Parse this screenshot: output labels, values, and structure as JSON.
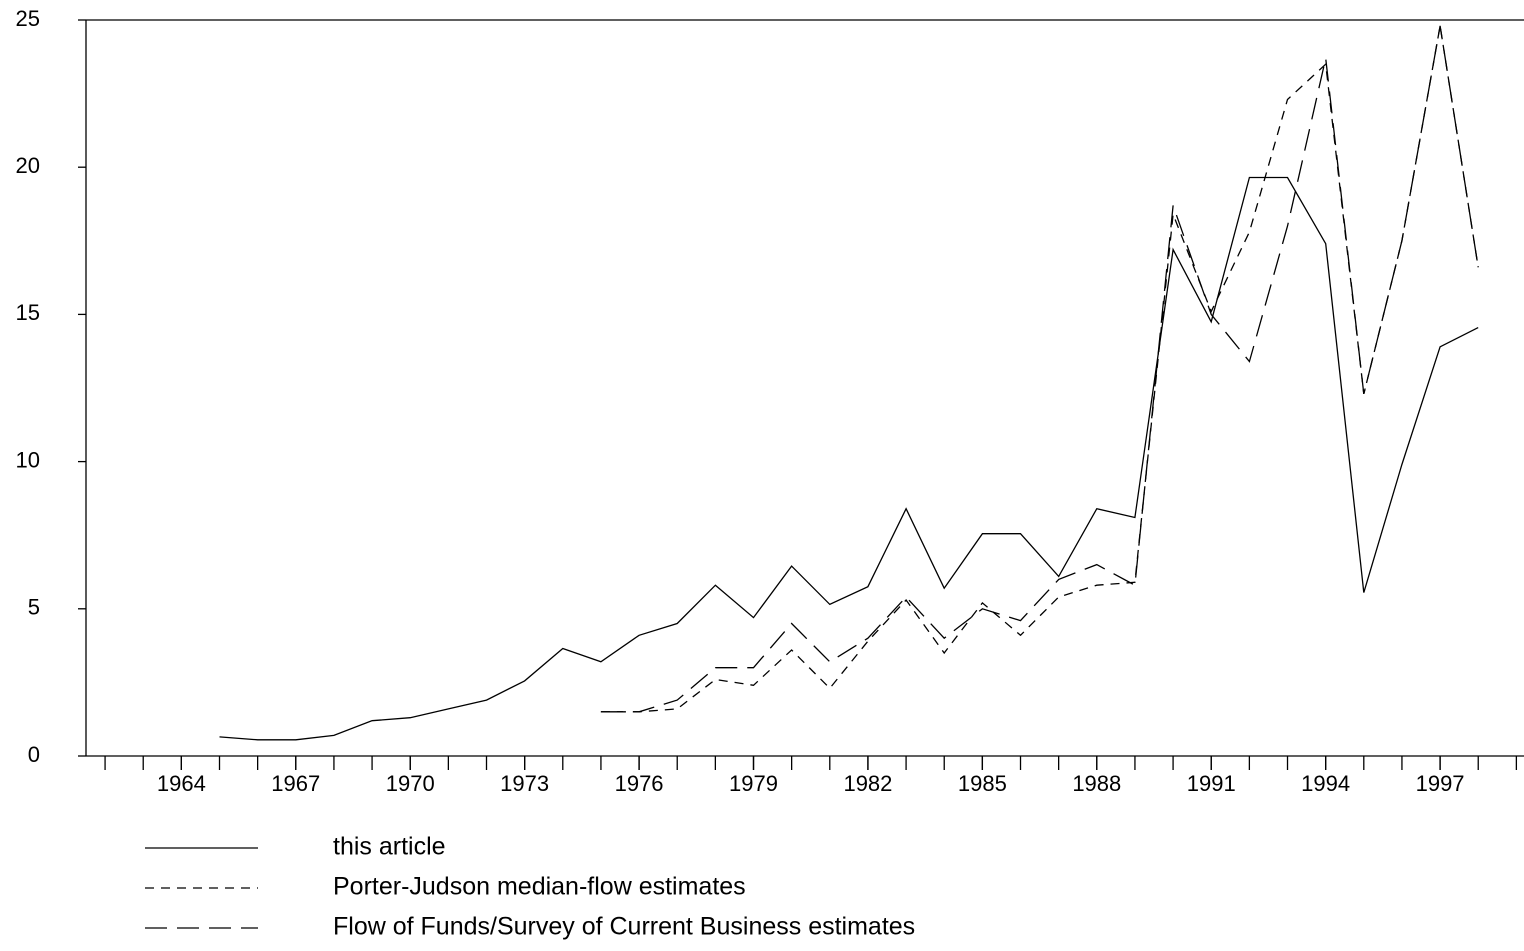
{
  "chart_data": {
    "type": "line",
    "xlim": [
      1961.5,
      1999.2
    ],
    "xticks": [
      1964,
      1967,
      1970,
      1973,
      1976,
      1979,
      1982,
      1985,
      1988,
      1991,
      1994,
      1997
    ],
    "xminorticks": [
      1962,
      1963,
      1964,
      1965,
      1966,
      1967,
      1968,
      1969,
      1970,
      1971,
      1972,
      1973,
      1974,
      1975,
      1976,
      1977,
      1978,
      1979,
      1980,
      1981,
      1982,
      1983,
      1984,
      1985,
      1986,
      1987,
      1988,
      1989,
      1990,
      1991,
      1992,
      1993,
      1994,
      1995,
      1996,
      1997,
      1998,
      1999
    ],
    "ylim": [
      0,
      25
    ],
    "yticks": [
      0,
      5,
      10,
      15,
      20,
      25
    ],
    "series": [
      {
        "name": "this article",
        "color": "#000000",
        "linestyle": "solid",
        "x": [
          1965,
          1966,
          1967,
          1968,
          1969,
          1970,
          1971,
          1972,
          1973,
          1974,
          1975,
          1976,
          1977,
          1978,
          1979,
          1980,
          1981,
          1982,
          1983,
          1984,
          1985,
          1986,
          1987,
          1988,
          1989,
          1990,
          1991,
          1992,
          1993,
          1994,
          1995,
          1996,
          1997,
          1998
        ],
        "values": [
          0.65,
          0.55,
          0.55,
          0.7,
          1.2,
          1.3,
          1.6,
          1.9,
          2.55,
          3.65,
          3.2,
          4.1,
          4.5,
          5.8,
          4.7,
          6.45,
          5.15,
          5.75,
          8.4,
          5.7,
          7.55,
          7.55,
          6.1,
          8.4,
          8.1,
          17.2,
          14.75,
          19.65,
          19.65,
          17.4,
          5.55,
          9.9,
          13.9,
          14.55
        ]
      },
      {
        "name": "Porter-Judson median-flow estimates",
        "color": "#000000",
        "linestyle": "short-dash",
        "x": [
          1975,
          1976,
          1977,
          1978,
          1979,
          1980,
          1981,
          1982,
          1983,
          1984,
          1985,
          1986,
          1987,
          1988,
          1989,
          1990,
          1991,
          1992,
          1993,
          1994,
          1995,
          1996,
          1997,
          1998
        ],
        "values": [
          1.5,
          1.5,
          1.6,
          2.6,
          2.4,
          3.6,
          2.3,
          3.9,
          5.3,
          3.5,
          5.2,
          4.1,
          5.4,
          5.8,
          5.9,
          18.4,
          15.1,
          17.8,
          22.3,
          23.5,
          12.3,
          17.5,
          24.8,
          16.6
        ]
      },
      {
        "name": "Flow of Funds/Survey of Current Business estimates",
        "color": "#000000",
        "linestyle": "long-dash",
        "x": [
          1975,
          1976,
          1977,
          1978,
          1979,
          1980,
          1981,
          1982,
          1983,
          1984,
          1985,
          1986,
          1987,
          1988,
          1989,
          1990,
          1991,
          1992,
          1993,
          1994,
          1995,
          1996,
          1997,
          1998
        ],
        "values": [
          1.5,
          1.5,
          1.9,
          3.0,
          3.0,
          4.5,
          3.2,
          4.0,
          5.4,
          4.0,
          5.0,
          4.6,
          6.0,
          6.5,
          5.8,
          18.7,
          15.0,
          13.4,
          18.0,
          23.7,
          12.3,
          17.5,
          24.8,
          16.6
        ]
      }
    ]
  }
}
